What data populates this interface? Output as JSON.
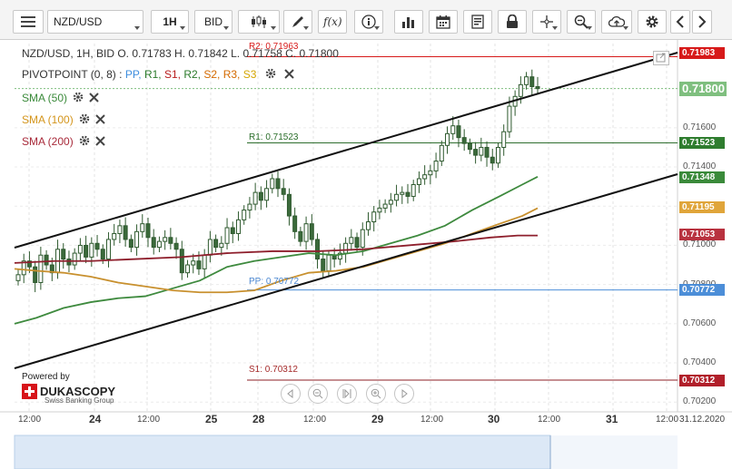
{
  "toolbar": {
    "symbol": "NZD/USD",
    "timeframe": "1H",
    "price_side": "BID",
    "tools": [
      "menu-icon",
      "candles-icon",
      "draw-pencil-icon",
      "fx-icon",
      "info-icon",
      "bars-icon",
      "calendar-icon",
      "report-icon",
      "lock-icon",
      "crosshair-icon",
      "zoom-icon",
      "cloud-upload-icon",
      "settings-icon",
      "chevron-left-icon",
      "chevron-right-icon"
    ]
  },
  "legend": {
    "ohlc": "NZD/USD, 1H, BID   O. 0.71783 H. 0.71842 L. 0.71758 C. 0.71800",
    "pivot_title": "PIVOTPOINT (0, 8)",
    "pivot_levels": [
      {
        "label": "PP,",
        "color": "#3e8ede"
      },
      {
        "label": "R1,",
        "color": "#2a7a2a"
      },
      {
        "label": "S1,",
        "color": "#b81c1c"
      },
      {
        "label": "R2,",
        "color": "#2a7a2a"
      },
      {
        "label": "S2,",
        "color": "#d46a00"
      },
      {
        "label": "R3,",
        "color": "#d46a00"
      },
      {
        "label": "S3",
        "color": "#d4a500"
      }
    ],
    "sma": [
      {
        "label": "SMA (50)",
        "color": "#3a8a3a"
      },
      {
        "label": "SMA (100)",
        "color": "#d4951c"
      },
      {
        "label": "SMA (200)",
        "color": "#a82a3a"
      }
    ]
  },
  "levels": {
    "r2": "R2: 0.71963",
    "r1": "R1: 0.71523",
    "pp": "PP: 0.70772",
    "s1": "S1: 0.70312"
  },
  "price_tags": [
    {
      "value": "0.71983",
      "color": "#d71a1a",
      "y_price": 0.71983
    },
    {
      "value": "0.71800",
      "color": "#7fbf7f",
      "y_price": 0.718,
      "big": true
    },
    {
      "value": "0.71523",
      "color": "#2f7d2f",
      "y_price": 0.71523
    },
    {
      "value": "0.71348",
      "color": "#3a8a3a",
      "y_price": 0.71348
    },
    {
      "value": "0.71195",
      "color": "#e0a53a",
      "y_price": 0.71195
    },
    {
      "value": "0.71053",
      "color": "#b8323f",
      "y_price": 0.71053
    },
    {
      "value": "0.70772",
      "color": "#4c8ed8",
      "y_price": 0.70772
    },
    {
      "value": "0.70312",
      "color": "#b11f2a",
      "y_price": 0.70312
    }
  ],
  "y_axis_ticks": [
    "0.71600",
    "0.71400",
    "0.71000",
    "0.70800",
    "0.70600",
    "0.70400",
    "0.70200"
  ],
  "x_axis": [
    {
      "label": "12:00",
      "big": false
    },
    {
      "label": "24",
      "big": true
    },
    {
      "label": "12:00",
      "big": false
    },
    {
      "label": "25",
      "big": true
    },
    {
      "label": "28",
      "big": true
    },
    {
      "label": "12:00",
      "big": false
    },
    {
      "label": "29",
      "big": true
    },
    {
      "label": "12:00",
      "big": false
    },
    {
      "label": "30",
      "big": true
    },
    {
      "label": "12:00",
      "big": false
    },
    {
      "label": "31",
      "big": true
    },
    {
      "label": "12:00",
      "big": false
    },
    {
      "label": "31.12.2020",
      "big": false
    }
  ],
  "branding": {
    "powered": "Powered by",
    "name": "DUKASCOPY",
    "sub": "Swiss Banking Group"
  },
  "chart_data": {
    "type": "candlestick",
    "title": "NZD/USD, 1H, BID",
    "ylim": [
      0.7015,
      0.7203
    ],
    "candles_close": [
      0.7085,
      0.7092,
      0.7089,
      0.7081,
      0.7095,
      0.709,
      0.7086,
      0.7098,
      0.7093,
      0.709,
      0.7096,
      0.71,
      0.7094,
      0.7101,
      0.7098,
      0.7093,
      0.7103,
      0.7106,
      0.711,
      0.7103,
      0.7099,
      0.7107,
      0.7111,
      0.7104,
      0.7099,
      0.7102,
      0.7104,
      0.7101,
      0.7098,
      0.7086,
      0.709,
      0.7092,
      0.7088,
      0.7095,
      0.7103,
      0.7099,
      0.7101,
      0.7109,
      0.7106,
      0.7113,
      0.7118,
      0.7121,
      0.7127,
      0.7123,
      0.7129,
      0.7134,
      0.7129,
      0.7126,
      0.7115,
      0.7107,
      0.7102,
      0.7111,
      0.7103,
      0.7093,
      0.7087,
      0.7095,
      0.7093,
      0.7096,
      0.7101,
      0.7104,
      0.7099,
      0.7108,
      0.7112,
      0.7117,
      0.7119,
      0.7121,
      0.7123,
      0.7126,
      0.7127,
      0.7125,
      0.7131,
      0.7134,
      0.7136,
      0.7138,
      0.7143,
      0.7151,
      0.7157,
      0.7161,
      0.7155,
      0.7152,
      0.7149,
      0.7146,
      0.715,
      0.7145,
      0.7142,
      0.715,
      0.7158,
      0.7171,
      0.7176,
      0.7182,
      0.7186,
      0.7181,
      0.718
    ]
  }
}
